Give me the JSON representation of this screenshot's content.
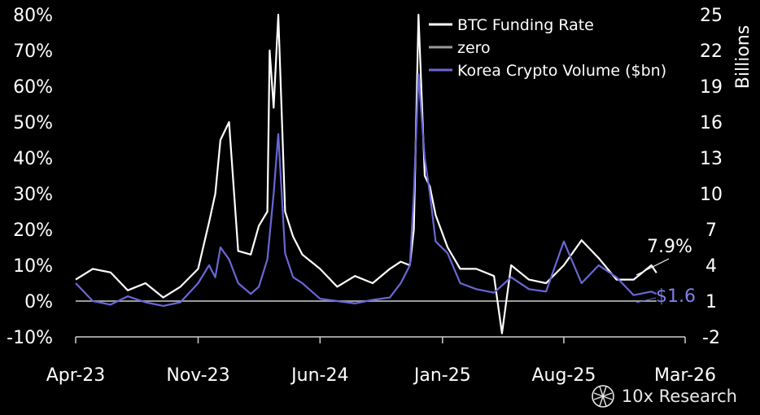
{
  "chart_data": {
    "type": "line",
    "y_left": {
      "ticks": [
        "80%",
        "70%",
        "60%",
        "50%",
        "40%",
        "30%",
        "20%",
        "10%",
        "0%",
        "-10%"
      ],
      "lim": [
        -10,
        80
      ],
      "unit": "%"
    },
    "y_right": {
      "label": "Billions",
      "ticks": [
        "25",
        "22",
        "19",
        "16",
        "13",
        "10",
        "7",
        "4",
        "1",
        "-2"
      ],
      "lim": [
        -2,
        25
      ]
    },
    "x_ticks": [
      "Apr-23",
      "Nov-23",
      "Jun-24",
      "Jan-25",
      "Aug-25",
      "Mar-26"
    ],
    "x_range": [
      "2023-04-01",
      "2026-03-01"
    ],
    "legend": {
      "position": "top-right",
      "entries": [
        "BTC Funding Rate",
        "zero",
        "Korea Crypto Volume ($bn)"
      ]
    },
    "series": [
      {
        "name": "BTC Funding Rate",
        "axis": "left",
        "color": "#ffffff",
        "x": [
          "2023-04-01",
          "2023-05-01",
          "2023-06-01",
          "2023-07-01",
          "2023-08-01",
          "2023-09-01",
          "2023-10-01",
          "2023-11-01",
          "2023-11-20",
          "2023-12-01",
          "2023-12-10",
          "2023-12-25",
          "2024-01-10",
          "2024-02-01",
          "2024-02-15",
          "2024-03-01",
          "2024-03-05",
          "2024-03-12",
          "2024-03-20",
          "2024-04-01",
          "2024-04-15",
          "2024-05-01",
          "2024-06-01",
          "2024-07-01",
          "2024-08-01",
          "2024-09-01",
          "2024-10-01",
          "2024-10-20",
          "2024-11-05",
          "2024-11-12",
          "2024-11-20",
          "2024-12-01",
          "2024-12-10",
          "2024-12-20",
          "2025-01-10",
          "2025-02-01",
          "2025-03-01",
          "2025-04-01",
          "2025-04-15",
          "2025-05-01",
          "2025-06-01",
          "2025-07-01",
          "2025-08-01",
          "2025-09-01",
          "2025-10-01",
          "2025-11-01",
          "2025-12-01",
          "2026-01-01",
          "2026-01-10"
        ],
        "y": [
          6,
          9,
          8,
          3,
          5,
          1,
          4,
          9,
          22,
          30,
          45,
          50,
          14,
          13,
          21,
          25,
          70,
          54,
          80,
          25,
          18,
          13,
          9,
          4,
          7,
          5,
          9,
          11,
          10,
          20,
          80,
          35,
          32,
          24,
          15,
          9,
          9,
          7,
          -9,
          10,
          6,
          5,
          10,
          17,
          12,
          6,
          6,
          10,
          7.9
        ]
      },
      {
        "name": "zero",
        "axis": "left",
        "color": "#9a9a9a",
        "x": [
          "2023-04-01",
          "2026-01-10"
        ],
        "y": [
          0,
          0
        ]
      },
      {
        "name": "Korea Crypto Volume ($bn)",
        "axis": "right",
        "color": "#6a67d6",
        "x": [
          "2023-04-01",
          "2023-05-01",
          "2023-06-01",
          "2023-07-01",
          "2023-08-01",
          "2023-09-01",
          "2023-10-01",
          "2023-11-01",
          "2023-11-20",
          "2023-12-01",
          "2023-12-10",
          "2023-12-25",
          "2024-01-10",
          "2024-02-01",
          "2024-02-15",
          "2024-03-01",
          "2024-03-12",
          "2024-03-20",
          "2024-04-01",
          "2024-04-15",
          "2024-05-01",
          "2024-06-01",
          "2024-07-01",
          "2024-08-01",
          "2024-09-01",
          "2024-10-01",
          "2024-10-20",
          "2024-11-05",
          "2024-11-12",
          "2024-11-20",
          "2024-12-01",
          "2024-12-10",
          "2024-12-20",
          "2025-01-10",
          "2025-02-01",
          "2025-03-01",
          "2025-04-01",
          "2025-05-01",
          "2025-06-01",
          "2025-07-01",
          "2025-08-01",
          "2025-09-01",
          "2025-10-01",
          "2025-11-01",
          "2025-12-01",
          "2026-01-01",
          "2026-01-10"
        ],
        "y": [
          2.5,
          1.0,
          0.7,
          1.4,
          0.9,
          0.6,
          0.9,
          2.5,
          4.0,
          3.0,
          5.5,
          4.5,
          2.5,
          1.6,
          2.2,
          4.5,
          10.0,
          15.0,
          5.0,
          3.0,
          2.5,
          1.2,
          1.0,
          0.8,
          1.1,
          1.3,
          2.5,
          4.0,
          10.0,
          20.0,
          13.0,
          10.0,
          6.0,
          5.0,
          2.5,
          2.0,
          1.7,
          3.0,
          2.0,
          1.8,
          6.0,
          2.5,
          4.0,
          3.0,
          1.5,
          1.8,
          1.6
        ]
      }
    ],
    "end_labels": {
      "funding": "7.9%",
      "volume": "$1.6"
    }
  },
  "colors": {
    "background": "#000000",
    "funding": "#ffffff",
    "zero": "#9a9a9a",
    "volume": "#6a67d6"
  },
  "brand": {
    "name": "10x Research",
    "icon": "brand-logo-icon"
  }
}
